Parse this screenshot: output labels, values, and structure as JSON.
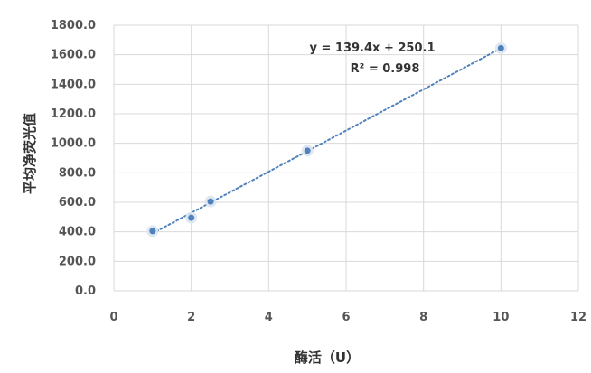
{
  "chart_data": {
    "type": "scatter",
    "xlabel": "酶活（U）",
    "ylabel": "平均净荧光值",
    "xlim": [
      0,
      12
    ],
    "ylim": [
      0,
      1800
    ],
    "x_ticks": [
      0,
      2,
      4,
      6,
      8,
      10,
      12
    ],
    "y_ticks": [
      0,
      200,
      400,
      600,
      800,
      1000,
      1200,
      1400,
      1600,
      1800
    ],
    "y_tick_labels": [
      "0.0",
      "200.0",
      "400.0",
      "600.0",
      "800.0",
      "1000.0",
      "1200.0",
      "1400.0",
      "1600.0",
      "1800.0"
    ],
    "grid": "vertical and horizontal",
    "series": [
      {
        "x": [
          1,
          2,
          2.5,
          5,
          10
        ],
        "y": [
          405,
          495,
          605,
          950,
          1645
        ],
        "color": "#4f81bd"
      }
    ],
    "trendline": {
      "type": "linear",
      "slope": 139.4,
      "intercept": 250.1,
      "style": "dotted",
      "color": "#4f81bd",
      "equation_label": "y = 139.4x + 250.1",
      "r2_label": "R² = 0.998"
    }
  }
}
